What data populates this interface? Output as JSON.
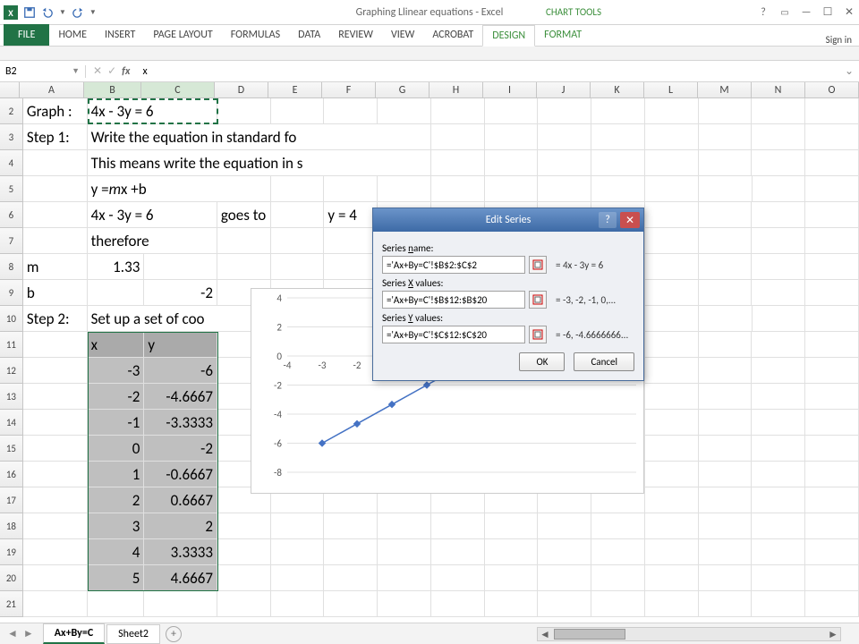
{
  "titlebar": {
    "title": "Graphing Llinear equations - Excel",
    "chart_tools": "CHART TOOLS"
  },
  "ribbon": {
    "file": "FILE",
    "tabs": [
      "HOME",
      "INSERT",
      "PAGE LAYOUT",
      "FORMULAS",
      "DATA",
      "REVIEW",
      "VIEW",
      "ACROBAT"
    ],
    "context_tabs": [
      "DESIGN",
      "FORMAT"
    ],
    "signin": "Sign in"
  },
  "namebox": {
    "value": "B2"
  },
  "formula": {
    "value": "x"
  },
  "columns": [
    "A",
    "B",
    "C",
    "D",
    "E",
    "F",
    "G",
    "H",
    "I",
    "J",
    "K",
    "L",
    "M",
    "N",
    "O"
  ],
  "selected_cols": [
    "B",
    "C"
  ],
  "rows_visible": [
    2,
    3,
    4,
    5,
    6,
    7,
    8,
    9,
    10,
    11,
    12,
    13,
    14,
    15,
    16,
    17,
    18,
    19,
    20,
    21
  ],
  "cells": {
    "A2": "Graph :",
    "B2_span": "4x - 3y = 6",
    "A3": "Step 1:",
    "B3_span": "Write the equation in standard fo",
    "B4_span": "This means write the equation in s",
    "B5_span_html": "y = <i>m</i> x +b",
    "B6_span": "4x - 3y = 6",
    "D6": "goes to",
    "F6_span": "y = 4",
    "B7": "therefore",
    "A8": "m",
    "B8": "1.33",
    "A9": "b",
    "C9": "-2",
    "A10": "Step 2:",
    "B10_span": "Set up a set of coo",
    "B11": "x",
    "C11": "y",
    "B12": "-3",
    "C12": "-6",
    "B13": "-2",
    "C13": "-4.6667",
    "B14": "-1",
    "C14": "-3.3333",
    "B15": "0",
    "C15": "-2",
    "B16": "1",
    "C16": "-0.6667",
    "B17": "2",
    "C17": "0.6667",
    "B18": "3",
    "C18": "2",
    "B19": "4",
    "C19": "3.3333",
    "B20": "5",
    "C20": "4.6667"
  },
  "chart": {
    "type": "scatter-line",
    "x": [
      -3,
      -2,
      -1,
      0,
      1,
      2,
      3,
      4,
      5
    ],
    "y": [
      -6,
      -4.6667,
      -3.3333,
      -2,
      -0.6667,
      0.6667,
      2,
      3.3333,
      4.6667
    ],
    "xlim": [
      -4,
      6
    ],
    "ylim": [
      -8,
      4
    ],
    "xticks": [
      -4,
      -3,
      -2,
      -1,
      0,
      1,
      2,
      3,
      4,
      5,
      6
    ],
    "yticks": [
      -8,
      -6,
      -4,
      -2,
      0,
      2,
      4
    ],
    "line_color": "#4472c4",
    "grid_color": "#e0e0e0",
    "background_color": "#ffffff",
    "marker": "diamond"
  },
  "dialog": {
    "title": "Edit Series",
    "name_label": "Series name:",
    "name_label_accel": "n",
    "name_value": "='Ax+By=C'!$B$2:$C$2",
    "name_preview": "= 4x - 3y = 6",
    "x_label": "Series X values:",
    "x_label_accel": "X",
    "x_value": "='Ax+By=C'!$B$12:$B$20",
    "x_preview": "= -3, -2, -1, 0,...",
    "y_label": "Series Y values:",
    "y_label_accel": "Y",
    "y_value": "='Ax+By=C'!$C$12:$C$20",
    "y_preview": "= -6, -4.6666666...",
    "ok": "OK",
    "cancel": "Cancel"
  },
  "sheets": {
    "active": "Ax+By=C",
    "others": [
      "Sheet2"
    ]
  }
}
